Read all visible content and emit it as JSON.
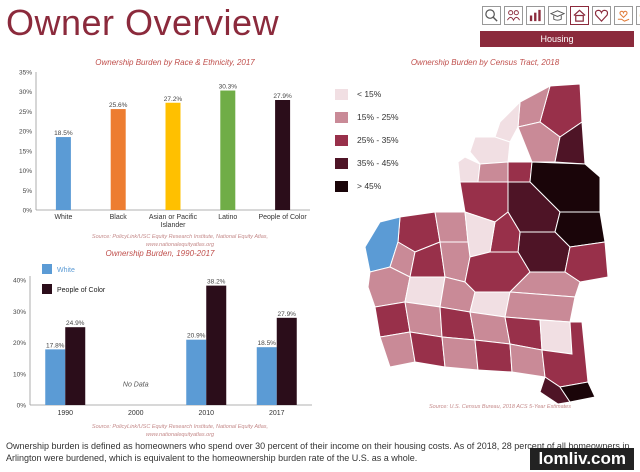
{
  "header": {
    "title": "Owner Overview",
    "section": "Housing",
    "nav_icons": [
      "search-icon",
      "people-icon",
      "chart-icon",
      "education-icon",
      "house-icon",
      "heart-icon",
      "heart-hand-icon",
      "badge-icon"
    ]
  },
  "colors": {
    "brand": "#8b2a3c",
    "white_series": "#5b9bd5",
    "poc_series": "#2b0d1a"
  },
  "chart_data": [
    {
      "type": "bar",
      "title": "Ownership Burden by Race & Ethnicity, 2017",
      "categories": [
        "White",
        "Black",
        "Asian or Pacific Islander",
        "Latino",
        "People of Color"
      ],
      "category_labels": [
        [
          "White"
        ],
        [
          "Black"
        ],
        [
          "Asian or Pacific",
          "Islander"
        ],
        [
          "Latino"
        ],
        [
          "People of Color"
        ]
      ],
      "values": [
        18.5,
        25.6,
        27.2,
        30.3,
        27.9
      ],
      "value_labels": [
        "18.5%",
        "25.6%",
        "27.2%",
        "30.3%",
        "27.9%"
      ],
      "bar_colors": [
        "#5b9bd5",
        "#ed7d31",
        "#ffc000",
        "#70ad47",
        "#2b0d1a"
      ],
      "ylim": [
        0,
        35
      ],
      "yticks": [
        "0%",
        "5%",
        "10%",
        "15%",
        "20%",
        "25%",
        "30%",
        "35%"
      ],
      "source": [
        "Source: PolicyLink/USC Equity Research Institute, National Equity Atlas,",
        "www.nationalequityatlas.org"
      ]
    },
    {
      "type": "bar",
      "title": "Ownership Burden, 1990-2017",
      "categories": [
        "1990",
        "2000",
        "2010",
        "2017"
      ],
      "series": [
        {
          "name": "White",
          "values": [
            17.8,
            null,
            20.9,
            18.5
          ],
          "labels": [
            "17.8%",
            "",
            "20.9%",
            "18.5%"
          ]
        },
        {
          "name": "People of Color",
          "values": [
            24.9,
            null,
            38.2,
            27.9
          ],
          "labels": [
            "24.9%",
            "",
            "38.2%",
            "27.9%"
          ]
        }
      ],
      "no_data_label": "No Data",
      "ylim": [
        0,
        40
      ],
      "yticks": [
        "0%",
        "10%",
        "20%",
        "30%",
        "40%"
      ],
      "source": [
        "Source: PolicyLink/USC Equity Research Institute, National Equity Atlas,",
        "www.nationalequityatlas.org"
      ]
    }
  ],
  "map": {
    "title": "Ownership Burden by Census Tract, 2018",
    "legend": [
      {
        "label": "< 15%",
        "color": "#f1dfe3"
      },
      {
        "label": "15% - 25%",
        "color": "#c98a97"
      },
      {
        "label": "25% - 35%",
        "color": "#98304a"
      },
      {
        "label": "35% - 45%",
        "color": "#4e1426"
      },
      {
        "label": "> 45%",
        "color": "#1a0509"
      }
    ],
    "source": "Source: U.S. Census Bureau, 2018 ACS 5-Year Estimates"
  },
  "footer": {
    "description": "Ownership burden is defined as homeowners who spend over 30 percent of their income on their housing costs. As of 2018, 28 percent of all homeowners in Arlington were burdened, which is equivalent to the homeownership burden rate of the U.S. as a whole.",
    "watermark": "lomliv.com"
  }
}
